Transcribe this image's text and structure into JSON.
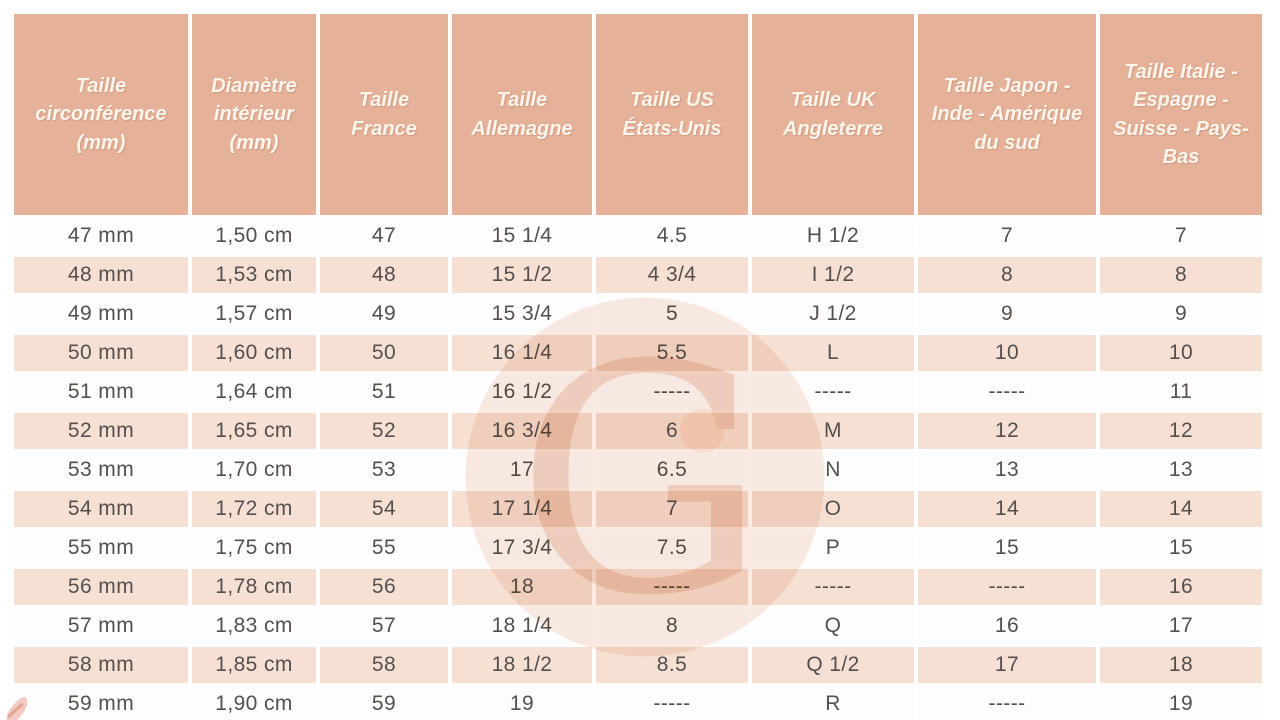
{
  "table": {
    "columns": [
      "Taille circonférence (mm)",
      "Diamètre intérieur (mm)",
      "Taille France",
      "Taille Allemagne",
      "Taille US États-Unis",
      "Taille UK Angleterre",
      "Taille Japon - Inde - Amérique du sud",
      "Taille Italie - Espagne - Suisse - Pays-Bas"
    ],
    "rows": [
      [
        "47 mm",
        "1,50 cm",
        "47",
        "15 1/4",
        "4.5",
        "H 1/2",
        "7",
        "7"
      ],
      [
        "48 mm",
        "1,53 cm",
        "48",
        "15 1/2",
        "4 3/4",
        "I 1/2",
        "8",
        "8"
      ],
      [
        "49 mm",
        "1,57 cm",
        "49",
        "15 3/4",
        "5",
        "J 1/2",
        "9",
        "9"
      ],
      [
        "50 mm",
        "1,60 cm",
        "50",
        "16 1/4",
        "5.5",
        "L",
        "10",
        "10"
      ],
      [
        "51 mm",
        "1,64 cm",
        "51",
        "16 1/2",
        "-----",
        "-----",
        "-----",
        "11"
      ],
      [
        "52 mm",
        "1,65 cm",
        "52",
        "16 3/4",
        "6",
        "M",
        "12",
        "12"
      ],
      [
        "53 mm",
        "1,70 cm",
        "53",
        "17",
        "6.5",
        "N",
        "13",
        "13"
      ],
      [
        "54 mm",
        "1,72 cm",
        "54",
        "17 1/4",
        "7",
        "O",
        "14",
        "14"
      ],
      [
        "55 mm",
        "1,75 cm",
        "55",
        "17 3/4",
        "7.5",
        "P",
        "15",
        "15"
      ],
      [
        "56 mm",
        "1,78 cm",
        "56",
        "18",
        "-----",
        "-----",
        "-----",
        "16"
      ],
      [
        "57 mm",
        "1,83 cm",
        "57",
        "18 1/4",
        "8",
        "Q",
        "16",
        "17"
      ],
      [
        "58 mm",
        "1,85 cm",
        "58",
        "18 1/2",
        "8.5",
        "Q 1/2",
        "17",
        "18"
      ],
      [
        "59 mm",
        "1,90 cm",
        "59",
        "19",
        "-----",
        "R",
        "-----",
        "19"
      ]
    ]
  },
  "watermark": {
    "letter": "G"
  },
  "colors": {
    "header_bg": "#e5b199",
    "header_text": "#fdf5ec",
    "row_bg": "#fdfdfd",
    "row_alt_bg": "#f6e0d3",
    "cell_text": "#55504d",
    "watermark_disc": "#eec3ac",
    "watermark_letter": "#dfa182"
  }
}
